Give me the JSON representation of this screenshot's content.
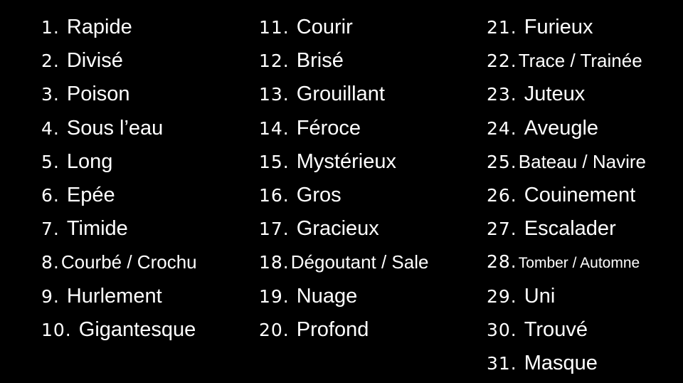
{
  "background_color": "#000000",
  "text_color": "#ffffff",
  "columns": [
    {
      "items": [
        {
          "number": "1.",
          "label": "Rapide"
        },
        {
          "number": "2.",
          "label": "Divisé"
        },
        {
          "number": "3.",
          "label": "Poison"
        },
        {
          "number": "4.",
          "label": "Sous l’eau"
        },
        {
          "number": "5.",
          "label": "Long"
        },
        {
          "number": "6.",
          "label": "Epée"
        },
        {
          "number": "7.",
          "label": "Timide"
        },
        {
          "number": "8.",
          "label": "Courbé / Crochu"
        },
        {
          "number": "9.",
          "label": "Hurlement"
        },
        {
          "number": "10.",
          "label": "Gigantesque"
        }
      ]
    },
    {
      "items": [
        {
          "number": "11.",
          "label": "Courir"
        },
        {
          "number": "12.",
          "label": "Brisé"
        },
        {
          "number": "13.",
          "label": "Grouillant"
        },
        {
          "number": "14.",
          "label": "Féroce"
        },
        {
          "number": "15.",
          "label": "Mystérieux"
        },
        {
          "number": "16.",
          "label": "Gros"
        },
        {
          "number": "17.",
          "label": "Gracieux"
        },
        {
          "number": "18.",
          "label": "Dégoutant / Sale"
        },
        {
          "number": "19.",
          "label": "Nuage"
        },
        {
          "number": "20.",
          "label": "Profond"
        }
      ]
    },
    {
      "items": [
        {
          "number": "21.",
          "label": "Furieux"
        },
        {
          "number": "22.",
          "label": "Trace / Trainée"
        },
        {
          "number": "23.",
          "label": "Juteux"
        },
        {
          "number": "24.",
          "label": "Aveugle"
        },
        {
          "number": "25.",
          "label": "Bateau / Navire"
        },
        {
          "number": "26.",
          "label": "Couinement"
        },
        {
          "number": "27.",
          "label": "Escalader"
        },
        {
          "number": "28.",
          "label": "Tomber / Automne"
        },
        {
          "number": "29.",
          "label": "Uni"
        },
        {
          "number": "30.",
          "label": "Trouvé"
        },
        {
          "number": "31.",
          "label": "Masque"
        }
      ]
    }
  ]
}
